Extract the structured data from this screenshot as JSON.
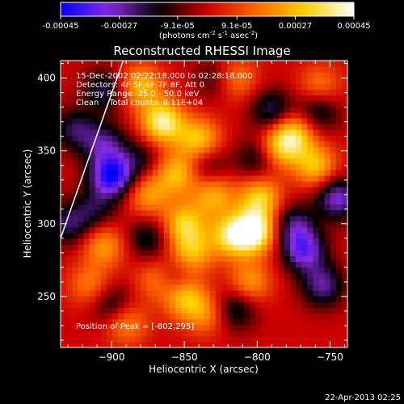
{
  "colorbar": {
    "tick_labels": [
      "-0.00045",
      "-0.00027",
      "-9.1e-05",
      "9.1e-05",
      "0.00027",
      "0.00045"
    ],
    "tick_values": [
      -0.00045,
      -0.00027,
      -9.1e-05,
      9.1e-05,
      0.00027,
      0.00045
    ],
    "range": [
      -0.00045,
      0.00045
    ],
    "units_parts": [
      "(photons cm",
      "-2",
      " s",
      "-1",
      " asec",
      "-2",
      ")"
    ],
    "colors": [
      "#0000ff",
      "#8a2be2",
      "#000000",
      "#cc0000",
      "#ff6600",
      "#ffd000",
      "#ffffff"
    ]
  },
  "chart_data": {
    "type": "heatmap",
    "title": "Reconstructed RHESSI Image",
    "xlabel": "Heliocentric X (arcsec)",
    "ylabel": "Heliocentric Y (arcsec)",
    "xlim": [
      -935,
      -738
    ],
    "ylim": [
      215,
      412
    ],
    "x_ticks": [
      -900,
      -850,
      -800,
      -750
    ],
    "y_ticks": [
      250,
      300,
      350,
      400
    ],
    "x_tick_labels": [
      "−900",
      "−850",
      "−800",
      "−750"
    ],
    "y_tick_labels": [
      "250",
      "300",
      "350",
      "400"
    ],
    "colorscale_range": [
      -0.00045,
      0.00045
    ],
    "annotations": [
      "15-Dec-2002 02:22:18.000 to 02:28:18.000",
      "Detectors: 4F 5F 6F 7F 8F, Att 0",
      "Energy Range: 25.0 - 50.0 keV",
      "Clean    Total counts: 8.11E+04"
    ],
    "peak_label": "Position of Peak = [-802,295]",
    "limb_line": [
      [
        -935,
        290
      ],
      [
        -892,
        412
      ]
    ],
    "blobs": [
      {
        "x": -865,
        "y": 370,
        "v": 0.0004
      },
      {
        "x": -840,
        "y": 358,
        "v": 0.0003
      },
      {
        "x": -855,
        "y": 335,
        "v": 0.00028
      },
      {
        "x": -875,
        "y": 320,
        "v": 0.00022
      },
      {
        "x": -830,
        "y": 320,
        "v": 0.00025
      },
      {
        "x": -850,
        "y": 300,
        "v": 0.0003
      },
      {
        "x": -845,
        "y": 280,
        "v": 0.00026
      },
      {
        "x": -818,
        "y": 292,
        "v": 0.00032
      },
      {
        "x": -802,
        "y": 295,
        "v": 0.00045
      },
      {
        "x": -798,
        "y": 318,
        "v": 0.0003
      },
      {
        "x": -785,
        "y": 352,
        "v": 0.00025
      },
      {
        "x": -775,
        "y": 362,
        "v": 0.0003
      },
      {
        "x": -760,
        "y": 340,
        "v": 0.00028
      },
      {
        "x": -880,
        "y": 395,
        "v": 0.00027
      },
      {
        "x": -850,
        "y": 250,
        "v": 0.0003
      },
      {
        "x": -868,
        "y": 262,
        "v": 0.00022
      },
      {
        "x": -905,
        "y": 285,
        "v": 0.00022
      },
      {
        "x": -915,
        "y": 258,
        "v": 0.00018
      },
      {
        "x": -890,
        "y": 232,
        "v": 0.0002
      },
      {
        "x": -835,
        "y": 238,
        "v": 0.00018
      },
      {
        "x": -805,
        "y": 260,
        "v": 0.00022
      },
      {
        "x": -815,
        "y": 400,
        "v": 0.0002
      },
      {
        "x": -757,
        "y": 395,
        "v": 0.00018
      },
      {
        "x": -905,
        "y": 355,
        "v": -0.00022
      },
      {
        "x": -900,
        "y": 333,
        "v": -0.00042
      },
      {
        "x": -925,
        "y": 365,
        "v": -0.0002
      },
      {
        "x": -905,
        "y": 392,
        "v": -0.0002
      },
      {
        "x": -875,
        "y": 290,
        "v": -0.00018
      },
      {
        "x": -880,
        "y": 345,
        "v": -0.00014
      },
      {
        "x": -858,
        "y": 262,
        "v": -0.0002
      },
      {
        "x": -835,
        "y": 340,
        "v": -0.00016
      },
      {
        "x": -800,
        "y": 345,
        "v": -0.00018
      },
      {
        "x": -790,
        "y": 378,
        "v": -0.00022
      },
      {
        "x": -758,
        "y": 378,
        "v": -0.0002
      },
      {
        "x": -745,
        "y": 318,
        "v": -0.0003
      },
      {
        "x": -775,
        "y": 300,
        "v": -0.00022
      },
      {
        "x": -768,
        "y": 282,
        "v": -0.00032
      },
      {
        "x": -755,
        "y": 258,
        "v": -0.00025
      },
      {
        "x": -815,
        "y": 242,
        "v": -0.0002
      },
      {
        "x": -900,
        "y": 245,
        "v": -0.00018
      },
      {
        "x": -930,
        "y": 300,
        "v": -0.0002
      },
      {
        "x": -912,
        "y": 310,
        "v": -0.00016
      },
      {
        "x": -828,
        "y": 400,
        "v": -0.00014
      }
    ]
  },
  "footer": {
    "timestamp": "22-Apr-2013 02:25"
  }
}
